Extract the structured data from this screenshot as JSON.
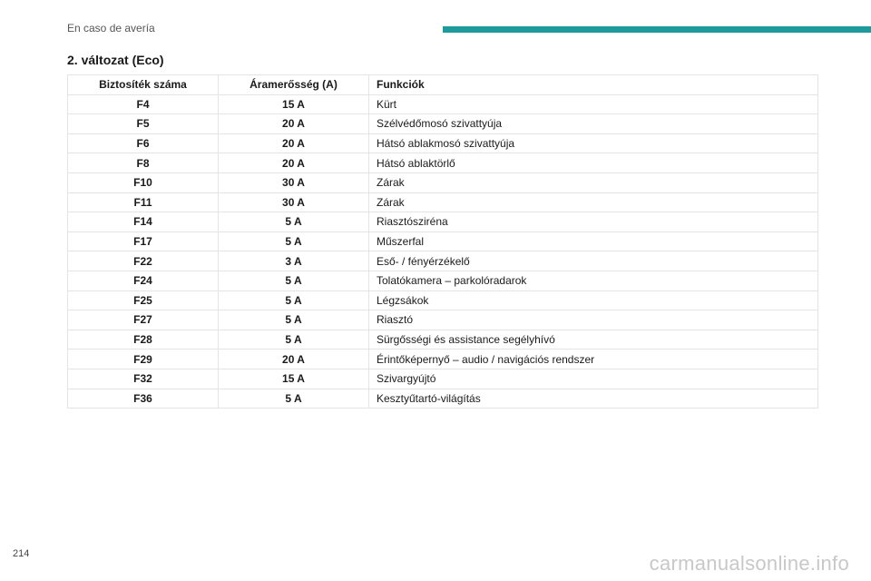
{
  "header": {
    "section": "En caso de avería",
    "accent_color": "#1e9a9b"
  },
  "title": "2. változat (Eco)",
  "table": {
    "columns": [
      "Biztosíték száma",
      "Áramerősség (A)",
      "Funkciók"
    ],
    "rows": [
      [
        "F4",
        "15 A",
        "Kürt"
      ],
      [
        "F5",
        "20 A",
        "Szélvédőmosó szivattyúja"
      ],
      [
        "F6",
        "20 A",
        "Hátsó ablakmosó szivattyúja"
      ],
      [
        "F8",
        "20 A",
        "Hátsó ablaktörlő"
      ],
      [
        "F10",
        "30 A",
        "Zárak"
      ],
      [
        "F11",
        "30 A",
        "Zárak"
      ],
      [
        "F14",
        "5 A",
        "Riasztósziréna"
      ],
      [
        "F17",
        "5 A",
        "Műszerfal"
      ],
      [
        "F22",
        "3 A",
        "Eső- / fényérzékelő"
      ],
      [
        "F24",
        "5 A",
        "Tolatókamera – parkolóradarok"
      ],
      [
        "F25",
        "5 A",
        "Légzsákok"
      ],
      [
        "F27",
        "5 A",
        "Riasztó"
      ],
      [
        "F28",
        "5 A",
        "Sürgősségi és assistance segélyhívó"
      ],
      [
        "F29",
        "20 A",
        "Érintőképernyő – audio / navigációs rendszer"
      ],
      [
        "F32",
        "15 A",
        "Szivargyújtó"
      ],
      [
        "F36",
        "5 A",
        "Kesztyűtartó-világítás"
      ]
    ]
  },
  "page_number": "214",
  "watermark": "carmanualsonline.info"
}
